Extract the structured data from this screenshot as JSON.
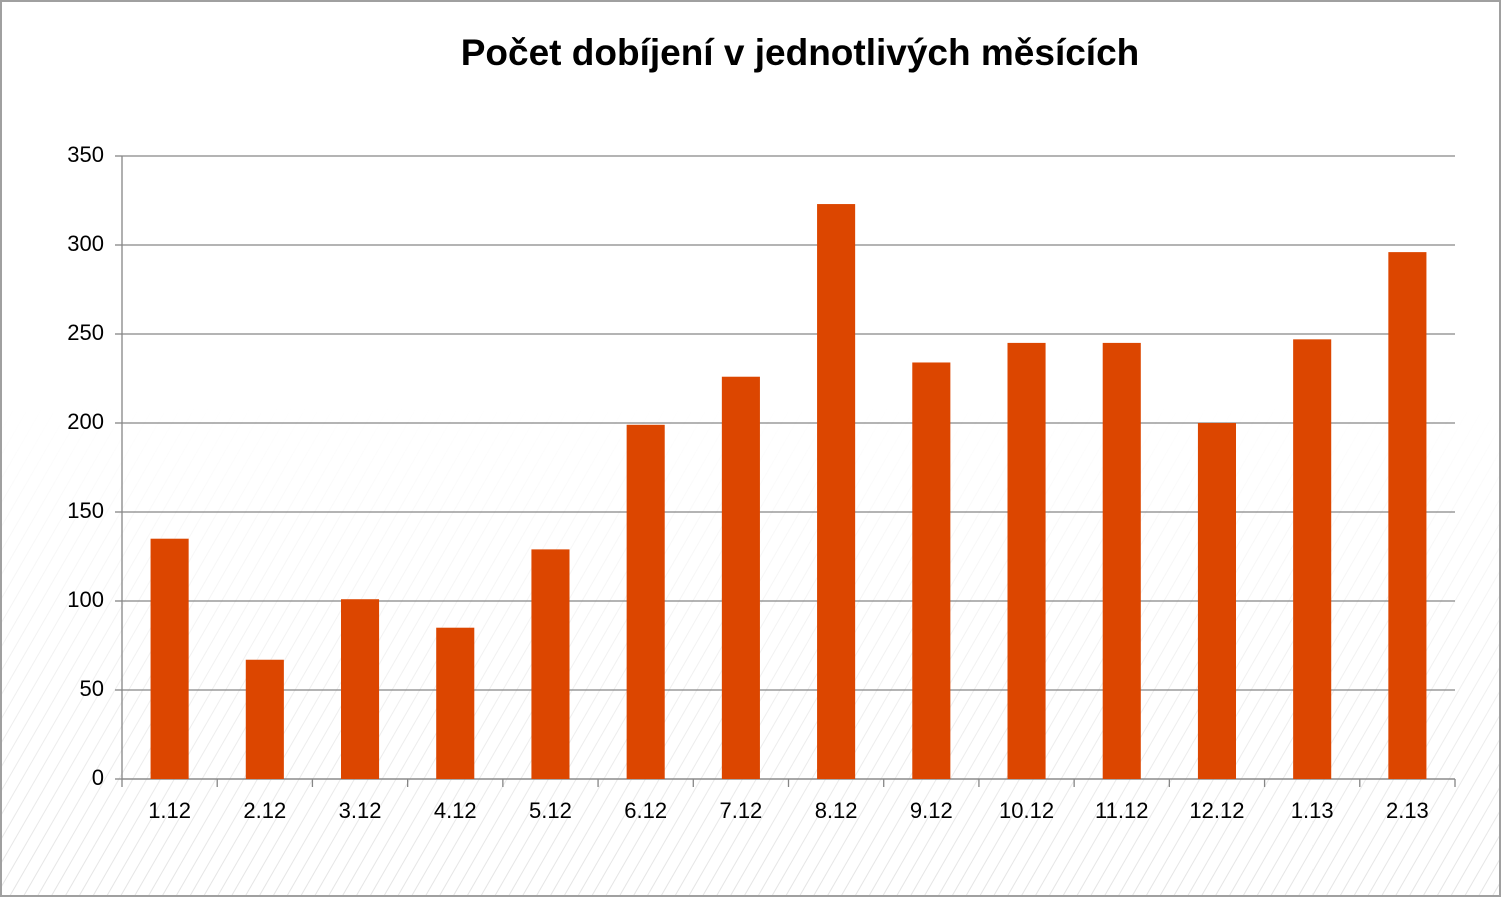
{
  "chart_data": {
    "type": "bar",
    "title": "Počet dobíjení v jednotlivých měsících",
    "categories": [
      "1.12",
      "2.12",
      "3.12",
      "4.12",
      "5.12",
      "6.12",
      "7.12",
      "8.12",
      "9.12",
      "10.12",
      "11.12",
      "12.12",
      "1.13",
      "2.13"
    ],
    "values": [
      135,
      67,
      101,
      85,
      129,
      199,
      226,
      323,
      234,
      245,
      245,
      200,
      247,
      296
    ],
    "color": "#dc4600",
    "ylim": [
      0,
      350
    ],
    "yticks": [
      0,
      50,
      100,
      150,
      200,
      250,
      300,
      350
    ],
    "grid": true
  }
}
